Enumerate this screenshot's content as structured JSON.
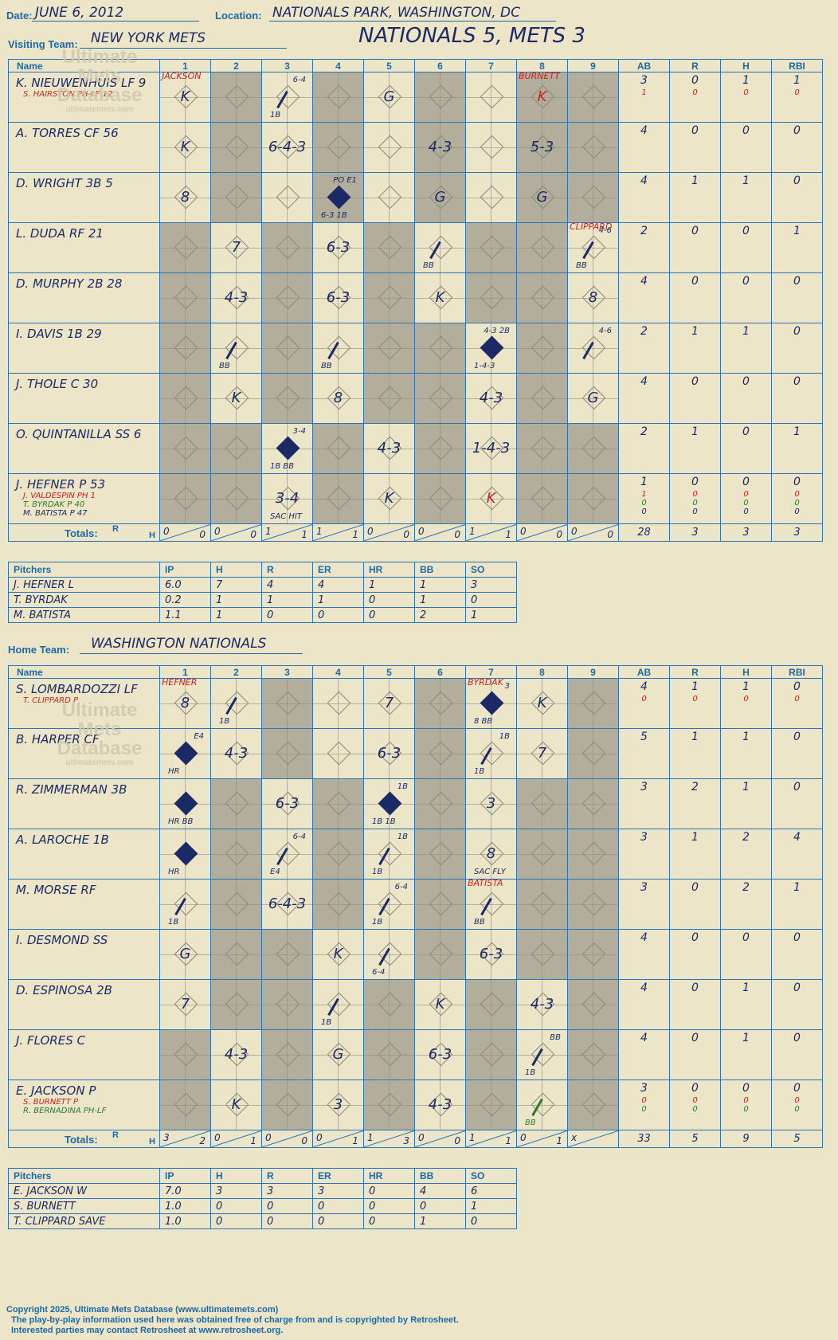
{
  "header": {
    "date_label": "Date:",
    "date": "JUNE 6, 2012",
    "location_label": "Location:",
    "location": "NATIONALS PARK, WASHINGTON, DC",
    "visiting_label": "Visiting Team:",
    "visiting_team": "NEW YORK METS",
    "final_score": "NATIONALS 5, METS 3",
    "home_label": "Home Team:",
    "home_team": "WASHINGTON NATIONALS"
  },
  "watermark": {
    "line1": "Ultimate",
    "line2": "Mets",
    "line3": "Database",
    "line4": "ultimatemets.com"
  },
  "columns": {
    "name": "Name",
    "innings": [
      "1",
      "2",
      "3",
      "4",
      "5",
      "6",
      "7",
      "8",
      "9"
    ],
    "ab": "AB",
    "r": "R",
    "h": "H",
    "rbi": "RBI",
    "totals": "Totals:",
    "r_short": "R",
    "h_short": "H"
  },
  "visitors": {
    "rows": [
      {
        "name": "K. NIEUWENHUIS LF 9",
        "sub": [
          {
            "text": "S. HAIRSTON PH-LF 12",
            "color": "red"
          }
        ],
        "ab": "3",
        "r": "0",
        "h": "1",
        "rbi": "1",
        "sub_stats": [
          [
            "1",
            "0",
            "0",
            "0"
          ]
        ]
      },
      {
        "name": "A. TORRES CF 56",
        "sub": [],
        "ab": "4",
        "r": "0",
        "h": "0",
        "rbi": "0",
        "sub_stats": []
      },
      {
        "name": "D. WRIGHT 3B 5",
        "sub": [],
        "ab": "4",
        "r": "1",
        "h": "1",
        "rbi": "0",
        "sub_stats": []
      },
      {
        "name": "L. DUDA RF 21",
        "sub": [],
        "ab": "2",
        "r": "0",
        "h": "0",
        "rbi": "1",
        "sub_stats": []
      },
      {
        "name": "D. MURPHY 2B 28",
        "sub": [],
        "ab": "4",
        "r": "0",
        "h": "0",
        "rbi": "0",
        "sub_stats": []
      },
      {
        "name": "I. DAVIS 1B 29",
        "sub": [],
        "ab": "2",
        "r": "1",
        "h": "1",
        "rbi": "0",
        "sub_stats": []
      },
      {
        "name": "J. THOLE C 30",
        "sub": [],
        "ab": "4",
        "r": "0",
        "h": "0",
        "rbi": "0",
        "sub_stats": []
      },
      {
        "name": "O. QUINTANILLA SS 6",
        "sub": [],
        "ab": "2",
        "r": "1",
        "h": "0",
        "rbi": "1",
        "sub_stats": []
      },
      {
        "name": "J. HEFNER P 53",
        "sub": [
          {
            "text": "J. VALDESPIN PH 1",
            "color": "red"
          },
          {
            "text": "T. BYRDAK P 40",
            "color": "green"
          },
          {
            "text": "M. BATISTA P 47",
            "color": "navy"
          }
        ],
        "ab": "1",
        "r": "0",
        "h": "0",
        "rbi": "0",
        "sub_stats": [
          [
            "1",
            "0",
            "0",
            "0"
          ],
          [
            "0",
            "0",
            "0",
            "0"
          ],
          [
            "0",
            "0",
            "0",
            "0"
          ]
        ]
      }
    ],
    "totals": {
      "innings": [
        [
          "0",
          "0"
        ],
        [
          "0",
          "0"
        ],
        [
          "1",
          "1"
        ],
        [
          "1",
          "1"
        ],
        [
          "0",
          "0"
        ],
        [
          "0",
          "0"
        ],
        [
          "1",
          "1"
        ],
        [
          "0",
          "0"
        ],
        [
          "0",
          "0"
        ]
      ],
      "ab": "28",
      "r": "3",
      "h": "3",
      "rbi": "3"
    },
    "pitchers_header": [
      "Pitchers",
      "IP",
      "H",
      "R",
      "ER",
      "HR",
      "BB",
      "SO"
    ],
    "pitchers": [
      [
        "J. HEFNER  L",
        "6.0",
        "7",
        "4",
        "4",
        "1",
        "1",
        "3"
      ],
      [
        "T. BYRDAK",
        "0.2",
        "1",
        "1",
        "1",
        "0",
        "1",
        "0"
      ],
      [
        "M. BATISTA",
        "1.1",
        "1",
        "0",
        "0",
        "0",
        "2",
        "1"
      ]
    ]
  },
  "home": {
    "rows": [
      {
        "name": "S. LOMBARDOZZI LF",
        "sub": [
          {
            "text": "T. CLIPPARD P",
            "color": "red"
          }
        ],
        "ab": "4",
        "r": "1",
        "h": "1",
        "rbi": "0",
        "sub_stats": [
          [
            "0",
            "0",
            "0",
            "0"
          ]
        ]
      },
      {
        "name": "B. HARPER CF",
        "sub": [],
        "ab": "5",
        "r": "1",
        "h": "1",
        "rbi": "0",
        "sub_stats": []
      },
      {
        "name": "R. ZIMMERMAN 3B",
        "sub": [],
        "ab": "3",
        "r": "2",
        "h": "1",
        "rbi": "0",
        "sub_stats": []
      },
      {
        "name": "A. LAROCHE 1B",
        "sub": [],
        "ab": "3",
        "r": "1",
        "h": "2",
        "rbi": "4",
        "sub_stats": []
      },
      {
        "name": "M. MORSE RF",
        "sub": [],
        "ab": "3",
        "r": "0",
        "h": "2",
        "rbi": "1",
        "sub_stats": []
      },
      {
        "name": "I. DESMOND SS",
        "sub": [],
        "ab": "4",
        "r": "0",
        "h": "0",
        "rbi": "0",
        "sub_stats": []
      },
      {
        "name": "D. ESPINOSA 2B",
        "sub": [],
        "ab": "4",
        "r": "0",
        "h": "1",
        "rbi": "0",
        "sub_stats": []
      },
      {
        "name": "J. FLORES C",
        "sub": [],
        "ab": "4",
        "r": "0",
        "h": "1",
        "rbi": "0",
        "sub_stats": []
      },
      {
        "name": "E. JACKSON P",
        "sub": [
          {
            "text": "S. BURNETT P",
            "color": "red"
          },
          {
            "text": "R. BERNADINA PH-LF",
            "color": "green"
          }
        ],
        "ab": "3",
        "r": "0",
        "h": "0",
        "rbi": "0",
        "sub_stats": [
          [
            "0",
            "0",
            "0",
            "0"
          ],
          [
            "0",
            "0",
            "0",
            "0"
          ]
        ]
      }
    ],
    "totals": {
      "innings": [
        [
          "3",
          "2"
        ],
        [
          "0",
          "1"
        ],
        [
          "0",
          "0"
        ],
        [
          "0",
          "1"
        ],
        [
          "1",
          "3"
        ],
        [
          "0",
          "0"
        ],
        [
          "1",
          "1"
        ],
        [
          "0",
          "1"
        ],
        [
          "x",
          ""
        ]
      ],
      "ab": "33",
      "r": "5",
      "h": "9",
      "rbi": "5"
    },
    "pitchers_header": [
      "Pitchers",
      "IP",
      "H",
      "R",
      "ER",
      "HR",
      "BB",
      "SO"
    ],
    "pitchers": [
      [
        "E. JACKSON  W",
        "7.0",
        "3",
        "3",
        "3",
        "0",
        "4",
        "6"
      ],
      [
        "S. BURNETT",
        "1.0",
        "0",
        "0",
        "0",
        "0",
        "0",
        "1"
      ],
      [
        "T. CLIPPARD  SAVE",
        "1.0",
        "0",
        "0",
        "0",
        "0",
        "1",
        "0"
      ]
    ]
  },
  "plays": {
    "visitors": [
      {
        "r": 0,
        "c": 0,
        "txt": "K",
        "top": "JACKSON",
        "topc": "red"
      },
      {
        "r": 0,
        "c": 2,
        "scored": false,
        "txt": "",
        "ne": "6-4",
        "sw": "1B",
        "slash": true
      },
      {
        "r": 0,
        "c": 4,
        "txt": "G"
      },
      {
        "r": 0,
        "c": 7,
        "txt": "K",
        "red": true,
        "top": "BURNETT",
        "topc": "red"
      },
      {
        "r": 1,
        "c": 0,
        "txt": "K"
      },
      {
        "r": 1,
        "c": 2,
        "txt": "6-4-3"
      },
      {
        "r": 1,
        "c": 5,
        "txt": "4-3"
      },
      {
        "r": 1,
        "c": 7,
        "txt": "5-3"
      },
      {
        "r": 2,
        "c": 0,
        "txt": "8"
      },
      {
        "r": 2,
        "c": 3,
        "scored": true,
        "ne": "PO E1",
        "sw": "6-3 1B"
      },
      {
        "r": 2,
        "c": 5,
        "txt": "G"
      },
      {
        "r": 2,
        "c": 7,
        "txt": "G"
      },
      {
        "r": 3,
        "c": 1,
        "txt": "7"
      },
      {
        "r": 3,
        "c": 3,
        "txt": "6-3"
      },
      {
        "r": 3,
        "c": 5,
        "sw": "BB",
        "slash": true
      },
      {
        "r": 3,
        "c": 8,
        "ne": "4-6",
        "sw": "BB",
        "slash": true,
        "top": "CLIPPARD",
        "topc": "red"
      },
      {
        "r": 4,
        "c": 1,
        "txt": "4-3"
      },
      {
        "r": 4,
        "c": 3,
        "txt": "6-3"
      },
      {
        "r": 4,
        "c": 5,
        "txt": "K"
      },
      {
        "r": 4,
        "c": 8,
        "txt": "8"
      },
      {
        "r": 5,
        "c": 1,
        "sw": "BB",
        "slash": true
      },
      {
        "r": 5,
        "c": 3,
        "sw": "BB",
        "slash": true
      },
      {
        "r": 5,
        "c": 6,
        "scored": true,
        "ne": "4-3 2B",
        "sw": "1-4-3"
      },
      {
        "r": 5,
        "c": 8,
        "ne": "4-6",
        "slash": true
      },
      {
        "r": 6,
        "c": 1,
        "txt": "K"
      },
      {
        "r": 6,
        "c": 3,
        "txt": "8"
      },
      {
        "r": 6,
        "c": 6,
        "txt": "4-3"
      },
      {
        "r": 6,
        "c": 8,
        "txt": "G"
      },
      {
        "r": 7,
        "c": 2,
        "scored": true,
        "ne": "3-4",
        "sw": "1B  BB"
      },
      {
        "r": 7,
        "c": 4,
        "txt": "4-3"
      },
      {
        "r": 7,
        "c": 6,
        "txt": "1-4-3"
      },
      {
        "r": 8,
        "c": 2,
        "txt": "3-4",
        "sw": "SAC HIT"
      },
      {
        "r": 8,
        "c": 4,
        "txt": "K"
      },
      {
        "r": 8,
        "c": 6,
        "txt": "K",
        "red": true
      }
    ],
    "home": [
      {
        "r": 0,
        "c": 0,
        "txt": "8",
        "top": "HEFNER",
        "topc": "red"
      },
      {
        "r": 0,
        "c": 1,
        "sw": "1B",
        "slash": true
      },
      {
        "r": 0,
        "c": 4,
        "txt": "7"
      },
      {
        "r": 0,
        "c": 6,
        "scored": true,
        "ne": "3",
        "sw": "8   BB",
        "top": "BYRDAK",
        "topc": "red"
      },
      {
        "r": 0,
        "c": 7,
        "txt": "K"
      },
      {
        "r": 1,
        "c": 0,
        "scored": true,
        "ne": "E4",
        "sw": "HR"
      },
      {
        "r": 1,
        "c": 1,
        "txt": "4-3"
      },
      {
        "r": 1,
        "c": 4,
        "txt": "6-3"
      },
      {
        "r": 1,
        "c": 6,
        "ne": "1B",
        "sw": "1B",
        "slash": true
      },
      {
        "r": 1,
        "c": 7,
        "txt": "7"
      },
      {
        "r": 2,
        "c": 0,
        "scored": true,
        "sw": "HR  BB"
      },
      {
        "r": 2,
        "c": 2,
        "txt": "6-3"
      },
      {
        "r": 2,
        "c": 4,
        "scored": true,
        "ne": "1B",
        "sw": "1B  1B"
      },
      {
        "r": 2,
        "c": 6,
        "txt": "3"
      },
      {
        "r": 3,
        "c": 0,
        "scored": true,
        "sw": "HR"
      },
      {
        "r": 3,
        "c": 2,
        "ne": "6-4",
        "sw": "E4",
        "slash": true
      },
      {
        "r": 3,
        "c": 4,
        "ne": "1B",
        "sw": "1B",
        "slash": true
      },
      {
        "r": 3,
        "c": 6,
        "txt": "8",
        "sw": "SAC FLY"
      },
      {
        "r": 4,
        "c": 0,
        "sw": "1B",
        "slash": true
      },
      {
        "r": 4,
        "c": 2,
        "txt": "6-4-3"
      },
      {
        "r": 4,
        "c": 4,
        "ne": "6-4",
        "sw": "1B",
        "slash": true
      },
      {
        "r": 4,
        "c": 6,
        "sw": "BB",
        "slash": true,
        "top": "BATISTA",
        "topc": "red"
      },
      {
        "r": 5,
        "c": 0,
        "txt": "G"
      },
      {
        "r": 5,
        "c": 3,
        "txt": "K"
      },
      {
        "r": 5,
        "c": 4,
        "sw": "6-4",
        "slash": true
      },
      {
        "r": 5,
        "c": 6,
        "txt": "6-3"
      },
      {
        "r": 6,
        "c": 0,
        "txt": "7"
      },
      {
        "r": 6,
        "c": 3,
        "sw": "1B",
        "slash": true
      },
      {
        "r": 6,
        "c": 5,
        "txt": "K"
      },
      {
        "r": 6,
        "c": 7,
        "txt": "4-3"
      },
      {
        "r": 7,
        "c": 1,
        "txt": "4-3"
      },
      {
        "r": 7,
        "c": 3,
        "txt": "G"
      },
      {
        "r": 7,
        "c": 5,
        "txt": "6-3"
      },
      {
        "r": 7,
        "c": 7,
        "ne": "BB",
        "sw": "1B",
        "slash": true
      },
      {
        "r": 8,
        "c": 1,
        "txt": "K"
      },
      {
        "r": 8,
        "c": 3,
        "txt": "3"
      },
      {
        "r": 8,
        "c": 5,
        "txt": "4-3"
      },
      {
        "r": 8,
        "c": 7,
        "sw": "BB",
        "slash": true,
        "green": true
      }
    ]
  },
  "footer": {
    "line1": "Copyright 2025, Ultimate Mets Database (www.ultimatemets.com)",
    "line2": "The play-by-play information used here was obtained free of charge from and is copyrighted by Retrosheet.",
    "line3": "Interested parties may contact Retrosheet at www.retrosheet.org."
  }
}
